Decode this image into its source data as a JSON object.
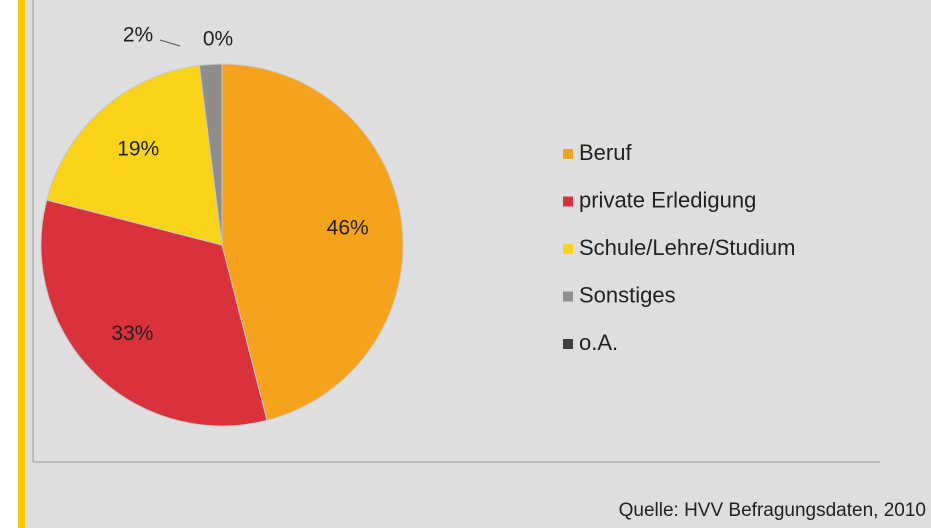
{
  "chart_data": {
    "type": "pie",
    "categories": [
      "Beruf",
      "private Erledigung",
      "Schule/Lehre/Studium",
      "Sonstiges",
      "o.A."
    ],
    "values": [
      46,
      33,
      19,
      2,
      0
    ],
    "value_labels": [
      "46%",
      "33%",
      "19%",
      "2%",
      "0%"
    ],
    "colors": [
      "#f5a21c",
      "#d9323d",
      "#f8d31a",
      "#8e8e8e",
      "#3f3f3f"
    ],
    "legend": "right",
    "source": "Quelle: HVV Befragungsdaten, 2010"
  }
}
